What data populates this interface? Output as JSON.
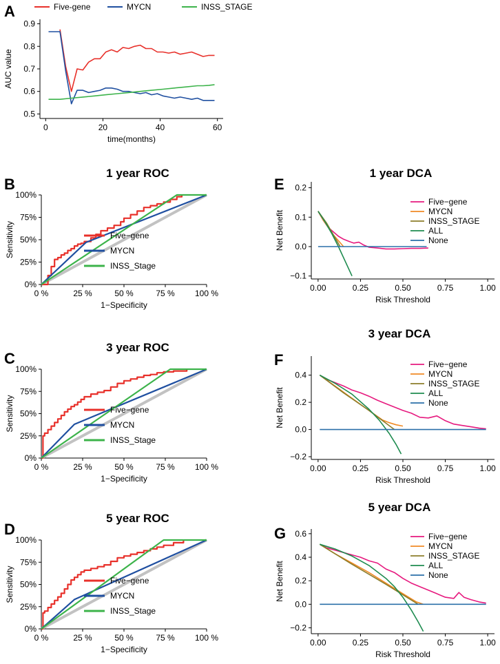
{
  "chart_data": [
    {
      "id": "A",
      "panel_label": "A",
      "type": "line",
      "title": "",
      "xlabel": "time(months)",
      "ylabel": "AUC value",
      "xlim": [
        -2,
        62
      ],
      "ylim": [
        0.48,
        0.92
      ],
      "xticks": [
        0,
        20,
        40,
        60
      ],
      "xtick_labels": [
        "0",
        "20",
        "40",
        "60"
      ],
      "yticks": [
        0.5,
        0.6,
        0.7,
        0.8,
        0.9
      ],
      "ytick_labels": [
        "0.5",
        "0.6",
        "0.7",
        "0.8",
        "0.9"
      ],
      "legend_position": "top",
      "series": [
        {
          "name": "Five-gene",
          "color": "#e8302a",
          "x": [
            5,
            7,
            9,
            11,
            13,
            15,
            17,
            19,
            21,
            23,
            25,
            27,
            29,
            31,
            33,
            35,
            37,
            39,
            41,
            43,
            45,
            47,
            49,
            51,
            53,
            55,
            57,
            59
          ],
          "y": [
            0.875,
            0.71,
            0.6,
            0.7,
            0.695,
            0.73,
            0.745,
            0.745,
            0.775,
            0.785,
            0.775,
            0.795,
            0.79,
            0.8,
            0.805,
            0.79,
            0.79,
            0.775,
            0.775,
            0.77,
            0.775,
            0.765,
            0.77,
            0.775,
            0.765,
            0.755,
            0.76,
            0.76
          ]
        },
        {
          "name": "MYCN",
          "color": "#1f4fa0",
          "x": [
            1,
            5,
            7,
            9,
            11,
            13,
            15,
            17,
            19,
            21,
            23,
            25,
            27,
            29,
            31,
            33,
            35,
            37,
            39,
            41,
            43,
            45,
            47,
            49,
            51,
            53,
            55,
            57,
            59
          ],
          "y": [
            0.865,
            0.865,
            0.69,
            0.545,
            0.605,
            0.605,
            0.595,
            0.6,
            0.605,
            0.615,
            0.615,
            0.61,
            0.6,
            0.6,
            0.595,
            0.59,
            0.595,
            0.585,
            0.59,
            0.58,
            0.575,
            0.57,
            0.575,
            0.57,
            0.565,
            0.57,
            0.56,
            0.56,
            0.56
          ]
        },
        {
          "name": "INSS_STAGE",
          "color": "#3cb34a",
          "x": [
            1,
            5,
            9,
            13,
            17,
            21,
            25,
            29,
            33,
            37,
            41,
            45,
            49,
            53,
            55,
            57,
            59
          ],
          "y": [
            0.565,
            0.565,
            0.57,
            0.575,
            0.58,
            0.585,
            0.59,
            0.595,
            0.6,
            0.605,
            0.61,
            0.615,
            0.62,
            0.625,
            0.625,
            0.627,
            0.63
          ]
        }
      ]
    },
    {
      "id": "B",
      "panel_label": "B",
      "type": "line",
      "title": "1 year ROC",
      "xlabel": "1−Specificity",
      "ylabel": "Sensitivity",
      "xlim": [
        0,
        1
      ],
      "ylim": [
        0,
        1
      ],
      "xticks": [
        0,
        0.25,
        0.5,
        0.75,
        1
      ],
      "xtick_labels": [
        "0 %",
        "25 %",
        "50 %",
        "75 %",
        "100 %"
      ],
      "yticks": [
        0,
        0.25,
        0.5,
        0.75,
        1
      ],
      "ytick_labels": [
        "0%",
        "25%",
        "50%",
        "75%",
        "100%"
      ],
      "legend_position": "bottom-center",
      "legend_style": "roc",
      "diagonal": true,
      "series": [
        {
          "name": "Five−gene",
          "color": "#e8302a",
          "step": true,
          "x": [
            0,
            0.04,
            0.06,
            0.08,
            0.1,
            0.12,
            0.14,
            0.16,
            0.18,
            0.2,
            0.22,
            0.24,
            0.26,
            0.3,
            0.33,
            0.36,
            0.4,
            0.44,
            0.48,
            0.5,
            0.54,
            0.58,
            0.62,
            0.66,
            0.7,
            0.74,
            0.78,
            0.82,
            0.85
          ],
          "y": [
            0,
            0.1,
            0.2,
            0.28,
            0.3,
            0.33,
            0.35,
            0.38,
            0.4,
            0.43,
            0.45,
            0.46,
            0.48,
            0.52,
            0.56,
            0.6,
            0.63,
            0.66,
            0.7,
            0.74,
            0.78,
            0.82,
            0.86,
            0.88,
            0.9,
            0.92,
            0.95,
            0.98,
            1.0
          ]
        },
        {
          "name": "MYCN",
          "color": "#1f4fa0",
          "x": [
            0,
            0.27,
            1
          ],
          "y": [
            0,
            0.47,
            1
          ]
        },
        {
          "name": "INSS_Stage",
          "color": "#3cb34a",
          "x": [
            0,
            0.82,
            1
          ],
          "y": [
            0,
            1,
            1
          ]
        }
      ]
    },
    {
      "id": "C",
      "panel_label": "C",
      "type": "line",
      "title": "3 year ROC",
      "xlabel": "1−Specificity",
      "ylabel": "Sensitivity",
      "xlim": [
        0,
        1
      ],
      "ylim": [
        0,
        1
      ],
      "xticks": [
        0,
        0.25,
        0.5,
        0.75,
        1
      ],
      "xtick_labels": [
        "0 %",
        "25 %",
        "50 %",
        "75 %",
        "100 %"
      ],
      "yticks": [
        0,
        0.25,
        0.5,
        0.75,
        1
      ],
      "ytick_labels": [
        "0%",
        "25%",
        "50%",
        "75%",
        "100%"
      ],
      "legend_position": "bottom-center",
      "legend_style": "roc",
      "diagonal": true,
      "series": [
        {
          "name": "Five−gene",
          "color": "#e8302a",
          "step": true,
          "x": [
            0,
            0.01,
            0.02,
            0.04,
            0.06,
            0.08,
            0.1,
            0.12,
            0.14,
            0.16,
            0.18,
            0.2,
            0.22,
            0.24,
            0.26,
            0.3,
            0.34,
            0.38,
            0.42,
            0.46,
            0.5,
            0.54,
            0.58,
            0.62,
            0.66,
            0.7,
            0.74,
            0.8,
            0.88
          ],
          "y": [
            0,
            0.25,
            0.28,
            0.32,
            0.36,
            0.4,
            0.44,
            0.48,
            0.52,
            0.55,
            0.58,
            0.6,
            0.63,
            0.66,
            0.69,
            0.72,
            0.74,
            0.76,
            0.8,
            0.84,
            0.87,
            0.89,
            0.91,
            0.93,
            0.94,
            0.96,
            0.97,
            0.98,
            1.0
          ]
        },
        {
          "name": "MYCN",
          "color": "#1f4fa0",
          "x": [
            0,
            0.2,
            1
          ],
          "y": [
            0,
            0.38,
            1
          ]
        },
        {
          "name": "INSS_Stage",
          "color": "#3cb34a",
          "x": [
            0,
            0.78,
            1
          ],
          "y": [
            0,
            1,
            1
          ]
        }
      ]
    },
    {
      "id": "D",
      "panel_label": "D",
      "type": "line",
      "title": "5 year ROC",
      "xlabel": "1−Specificity",
      "ylabel": "Sensitivity",
      "xlim": [
        0,
        1
      ],
      "ylim": [
        0,
        1
      ],
      "xticks": [
        0,
        0.25,
        0.5,
        0.75,
        1
      ],
      "xtick_labels": [
        "0 %",
        "25 %",
        "50 %",
        "75 %",
        "100 %"
      ],
      "yticks": [
        0,
        0.25,
        0.5,
        0.75,
        1
      ],
      "ytick_labels": [
        "0%",
        "25%",
        "50%",
        "75%",
        "100%"
      ],
      "legend_position": "bottom-center",
      "legend_style": "roc",
      "diagonal": true,
      "series": [
        {
          "name": "Five−gene",
          "color": "#e8302a",
          "step": true,
          "x": [
            0,
            0.01,
            0.02,
            0.04,
            0.06,
            0.08,
            0.1,
            0.12,
            0.14,
            0.16,
            0.18,
            0.2,
            0.22,
            0.24,
            0.26,
            0.3,
            0.34,
            0.38,
            0.42,
            0.46,
            0.5,
            0.54,
            0.58,
            0.62,
            0.66,
            0.7,
            0.74,
            0.8,
            0.86
          ],
          "y": [
            0,
            0.18,
            0.2,
            0.24,
            0.28,
            0.32,
            0.36,
            0.4,
            0.45,
            0.5,
            0.55,
            0.58,
            0.61,
            0.64,
            0.66,
            0.68,
            0.7,
            0.72,
            0.76,
            0.8,
            0.82,
            0.84,
            0.86,
            0.88,
            0.9,
            0.92,
            0.94,
            0.97,
            1.0
          ]
        },
        {
          "name": "MYCN",
          "color": "#1f4fa0",
          "x": [
            0,
            0.2,
            1
          ],
          "y": [
            0,
            0.33,
            1
          ]
        },
        {
          "name": "INSS_Stage",
          "color": "#3cb34a",
          "x": [
            0,
            0.74,
            1
          ],
          "y": [
            0,
            1,
            1
          ]
        }
      ]
    },
    {
      "id": "E",
      "panel_label": "E",
      "type": "line",
      "title": "1 year DCA",
      "xlabel": "Risk Threshold",
      "ylabel": "Net Benefit",
      "xlim": [
        -0.04,
        1.04
      ],
      "ylim": [
        -0.11,
        0.22
      ],
      "xticks": [
        0,
        0.25,
        0.5,
        0.75,
        1
      ],
      "xtick_labels": [
        "0.00",
        "0.25",
        "0.50",
        "0.75",
        "1.00"
      ],
      "yticks": [
        -0.1,
        0,
        0.1,
        0.2
      ],
      "ytick_labels": [
        "−0.1",
        "0.0",
        "0.1",
        "0.2"
      ],
      "legend_position": "right",
      "legend_style": "dca",
      "series": [
        {
          "name": "Five−gene",
          "color": "#e6197e",
          "x": [
            0,
            0.03,
            0.06,
            0.09,
            0.12,
            0.15,
            0.18,
            0.21,
            0.24,
            0.27,
            0.3,
            0.35,
            0.4,
            0.45,
            0.5,
            0.55,
            0.6,
            0.65
          ],
          "y": [
            0.12,
            0.09,
            0.065,
            0.05,
            0.035,
            0.025,
            0.018,
            0.012,
            0.015,
            0.005,
            -0.002,
            -0.005,
            -0.008,
            -0.008,
            -0.007,
            -0.006,
            -0.006,
            -0.005
          ]
        },
        {
          "name": "MYCN",
          "color": "#f08a24",
          "x": [
            0,
            0.03,
            0.06,
            0.09,
            0.12,
            0.15
          ],
          "y": [
            0.12,
            0.09,
            0.065,
            0.04,
            0.02,
            0.0
          ]
        },
        {
          "name": "INSS_STAGE",
          "color": "#8b7d2a",
          "x": [
            0,
            0.05,
            0.1,
            0.13
          ],
          "y": [
            0.12,
            0.08,
            0.03,
            0.0
          ]
        },
        {
          "name": "ALL",
          "color": "#1e8b4f",
          "x": [
            0,
            0.04,
            0.08,
            0.12,
            0.16,
            0.2
          ],
          "y": [
            0.12,
            0.085,
            0.045,
            0.0,
            -0.05,
            -0.1
          ]
        },
        {
          "name": "None",
          "color": "#2a6fa8",
          "x": [
            0,
            0.64
          ],
          "y": [
            0,
            0
          ]
        }
      ]
    },
    {
      "id": "F",
      "panel_label": "F",
      "type": "line",
      "title": "3 year DCA",
      "xlabel": "Risk Threshold",
      "ylabel": "Net Benefit",
      "xlim": [
        -0.04,
        1.04
      ],
      "ylim": [
        -0.22,
        0.54
      ],
      "xticks": [
        0,
        0.25,
        0.5,
        0.75,
        1
      ],
      "xtick_labels": [
        "0.00",
        "0.25",
        "0.50",
        "0.75",
        "1.00"
      ],
      "yticks": [
        -0.2,
        0,
        0.2,
        0.4
      ],
      "ytick_labels": [
        "−0.2",
        "0.0",
        "0.2",
        "0.4"
      ],
      "legend_position": "right",
      "legend_style": "dca",
      "series": [
        {
          "name": "Five−gene",
          "color": "#e6197e",
          "x": [
            0.01,
            0.05,
            0.1,
            0.15,
            0.2,
            0.25,
            0.3,
            0.35,
            0.4,
            0.45,
            0.5,
            0.55,
            0.6,
            0.65,
            0.7,
            0.75,
            0.8,
            0.85,
            0.9,
            0.95,
            0.99
          ],
          "y": [
            0.4,
            0.37,
            0.345,
            0.32,
            0.29,
            0.27,
            0.245,
            0.215,
            0.19,
            0.165,
            0.14,
            0.12,
            0.09,
            0.085,
            0.1,
            0.065,
            0.04,
            0.03,
            0.02,
            0.01,
            0.005
          ]
        },
        {
          "name": "MYCN",
          "color": "#f08a24",
          "x": [
            0.01,
            0.1,
            0.2,
            0.3,
            0.38,
            0.42,
            0.46,
            0.5
          ],
          "y": [
            0.4,
            0.32,
            0.23,
            0.14,
            0.07,
            0.05,
            0.035,
            0.025
          ]
        },
        {
          "name": "INSS_STAGE",
          "color": "#8b7d2a",
          "x": [
            0.01,
            0.15,
            0.3,
            0.45
          ],
          "y": [
            0.4,
            0.27,
            0.14,
            0.0
          ]
        },
        {
          "name": "ALL",
          "color": "#1e8b4f",
          "x": [
            0.01,
            0.1,
            0.2,
            0.3,
            0.36,
            0.42,
            0.46,
            0.49
          ],
          "y": [
            0.4,
            0.34,
            0.26,
            0.15,
            0.07,
            -0.03,
            -0.11,
            -0.18
          ]
        },
        {
          "name": "None",
          "color": "#2a6fa8",
          "x": [
            0.01,
            0.99
          ],
          "y": [
            0,
            0
          ]
        }
      ]
    },
    {
      "id": "G",
      "panel_label": "G",
      "type": "line",
      "title": "5 year DCA",
      "xlabel": "Risk Threshold",
      "ylabel": "Net Benefit",
      "xlim": [
        -0.04,
        1.04
      ],
      "ylim": [
        -0.25,
        0.64
      ],
      "xticks": [
        0,
        0.25,
        0.5,
        0.75,
        1
      ],
      "xtick_labels": [
        "0.00",
        "0.25",
        "0.50",
        "0.75",
        "1.00"
      ],
      "yticks": [
        -0.2,
        0,
        0.2,
        0.4,
        0.6
      ],
      "ytick_labels": [
        "−0.2",
        "0.0",
        "0.2",
        "0.4",
        "0.6"
      ],
      "legend_position": "right",
      "legend_style": "dca",
      "series": [
        {
          "name": "Five−gene",
          "color": "#e6197e",
          "x": [
            0.01,
            0.05,
            0.1,
            0.15,
            0.2,
            0.25,
            0.3,
            0.35,
            0.4,
            0.45,
            0.5,
            0.55,
            0.6,
            0.65,
            0.7,
            0.75,
            0.8,
            0.83,
            0.86,
            0.9,
            0.95,
            0.99
          ],
          "y": [
            0.51,
            0.48,
            0.46,
            0.44,
            0.42,
            0.4,
            0.37,
            0.35,
            0.3,
            0.27,
            0.22,
            0.18,
            0.15,
            0.12,
            0.09,
            0.06,
            0.05,
            0.1,
            0.06,
            0.04,
            0.02,
            0.01
          ]
        },
        {
          "name": "MYCN",
          "color": "#f08a24",
          "x": [
            0.01,
            0.1,
            0.2,
            0.3,
            0.4,
            0.5,
            0.58,
            0.62
          ],
          "y": [
            0.51,
            0.43,
            0.35,
            0.27,
            0.18,
            0.09,
            0.02,
            0.0
          ]
        },
        {
          "name": "INSS_STAGE",
          "color": "#8b7d2a",
          "x": [
            0.01,
            0.2,
            0.4,
            0.59
          ],
          "y": [
            0.51,
            0.34,
            0.17,
            0.0
          ]
        },
        {
          "name": "ALL",
          "color": "#1e8b4f",
          "x": [
            0.01,
            0.1,
            0.2,
            0.3,
            0.4,
            0.45,
            0.5,
            0.55,
            0.59,
            0.62
          ],
          "y": [
            0.51,
            0.47,
            0.41,
            0.33,
            0.22,
            0.15,
            0.06,
            -0.05,
            -0.15,
            -0.23
          ]
        },
        {
          "name": "None",
          "color": "#2a6fa8",
          "x": [
            0.01,
            0.99
          ],
          "y": [
            0,
            0
          ]
        }
      ]
    }
  ]
}
